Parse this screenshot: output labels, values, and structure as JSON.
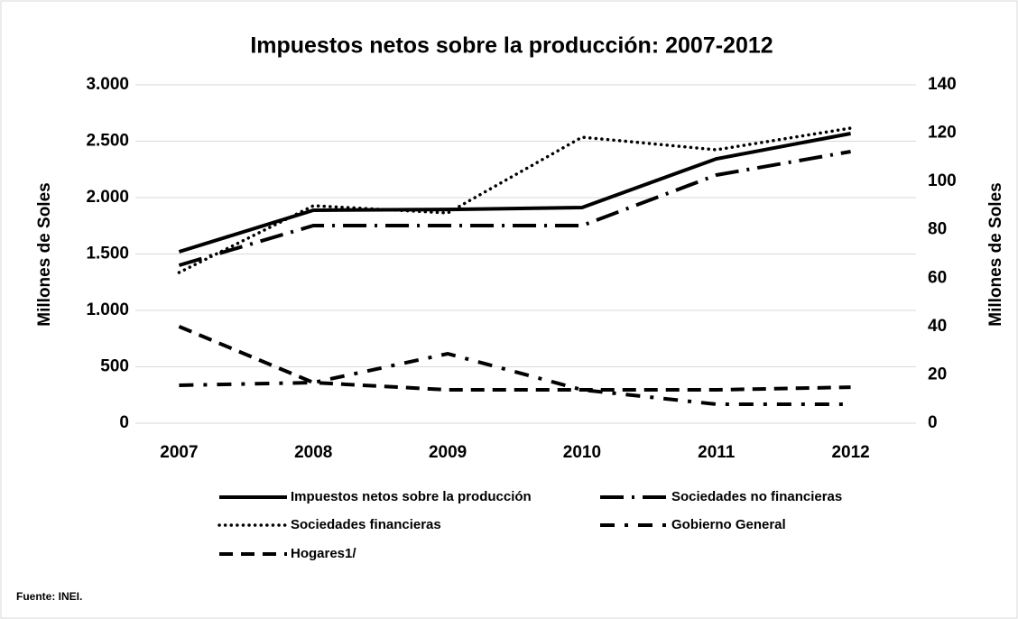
{
  "chart_data": {
    "type": "line",
    "title": "Impuestos netos sobre la producción: 2007-2012",
    "y_label": "Millones de Soles",
    "y2_label": "Millones de Soles",
    "source": "Fuente: INEI.",
    "categories": [
      "2007",
      "2008",
      "2009",
      "2010",
      "2011",
      "2012"
    ],
    "series": [
      {
        "name": "Impuestos netos sobre la producción",
        "color": "#000000",
        "values": [
          1520,
          1888,
          1895,
          1912,
          2344,
          2568
        ]
      },
      {
        "name": "Sociedades no financieras",
        "color": "#000000",
        "values": [
          1400,
          1752,
          1752,
          1752,
          2200,
          2408
        ]
      },
      {
        "name": "Sociedades financieras",
        "color": "#000000",
        "values": [
          1336,
          1928,
          1864,
          2536,
          2424,
          2616
        ]
      },
      {
        "name": "Gobierno General",
        "color": "#000000",
        "values": [
          336,
          360,
          616,
          296,
          168,
          168
        ]
      },
      {
        "name": "Hogares1/",
        "color": "#000000",
        "axis": "y2",
        "values": [
          40,
          16.8,
          13.8,
          13.8,
          13.8,
          14.9
        ]
      }
    ],
    "ylim": [
      0,
      3000
    ],
    "yticks": [
      0,
      500,
      {
        "value": 1000,
        "label": "1.000"
      },
      {
        "value": 1500,
        "label": "1.500"
      },
      {
        "value": 2000,
        "label": "2.000"
      },
      {
        "value": 2500,
        "label": "2.500"
      },
      {
        "value": 3000,
        "label": "3.000"
      }
    ],
    "y2lim": [
      0,
      140
    ],
    "y2ticks": [
      0,
      20,
      40,
      60,
      80,
      100,
      120,
      140
    ],
    "grid": true,
    "legend": "bottom"
  }
}
